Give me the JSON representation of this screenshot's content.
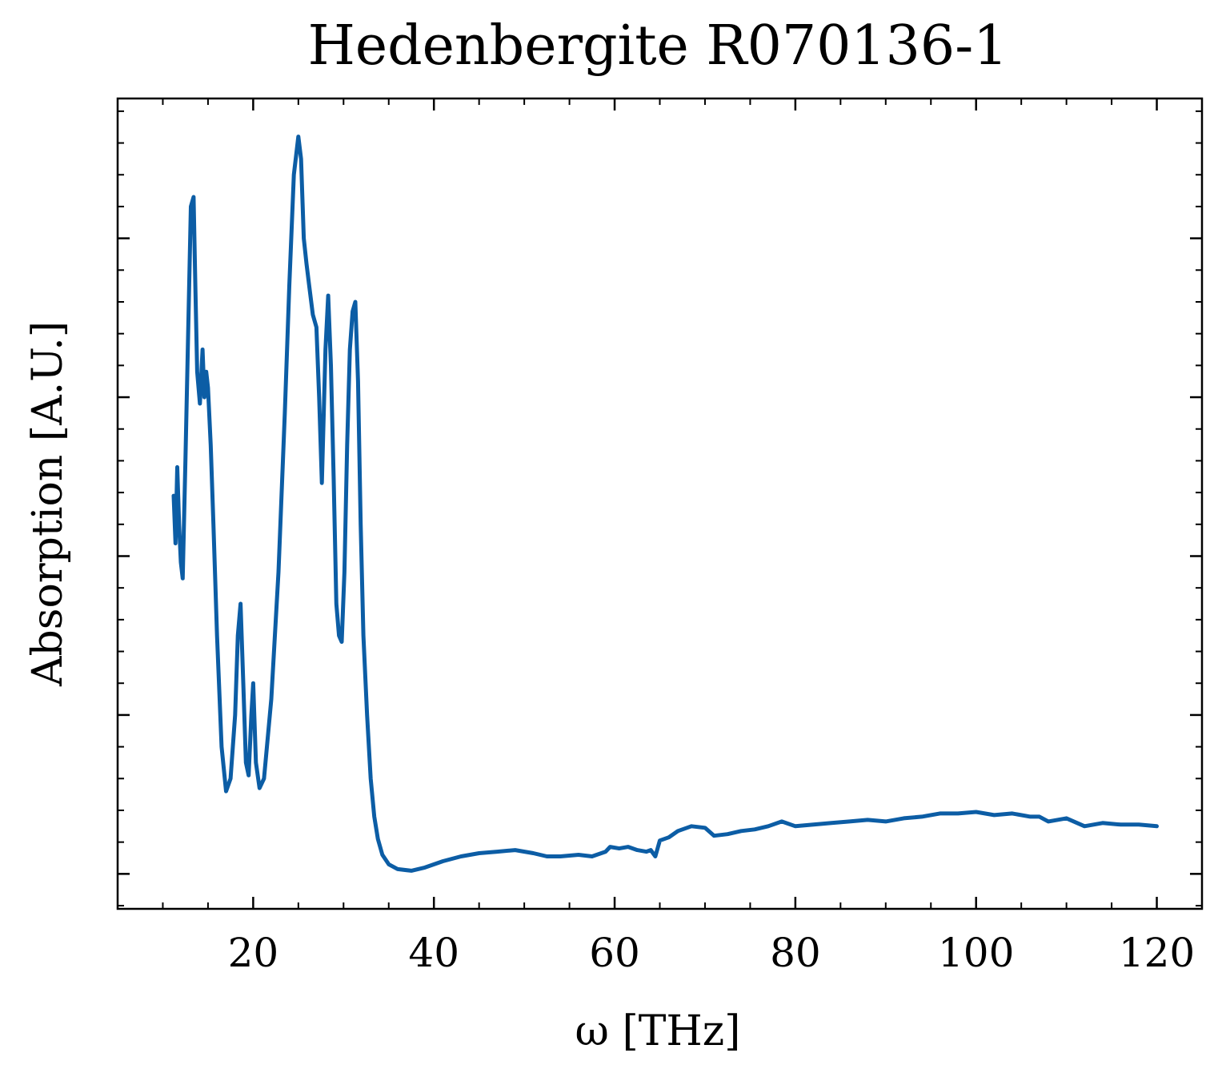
{
  "chart_data": {
    "type": "line",
    "title": "Hedenbergite R070136-1",
    "xlabel": "ω [THz]",
    "ylabel": "Absorption [A.U.]",
    "xlim": [
      5,
      125
    ],
    "ylim": [
      -0.11,
      2.44
    ],
    "x_ticks": [
      20,
      40,
      60,
      80,
      100,
      120
    ],
    "x_minor_step": 5,
    "y_ticks": [
      0,
      0.5,
      1.0,
      1.5,
      2.0
    ],
    "y_tick_labels_visible": false,
    "y_minor_step": 0.1,
    "grid": false,
    "series": [
      {
        "color": "#0c5da5",
        "x": [
          11.2,
          11.4,
          11.6,
          11.8,
          12.0,
          12.2,
          12.5,
          12.8,
          13.1,
          13.4,
          13.6,
          13.8,
          14.1,
          14.4,
          14.6,
          14.8,
          15.0,
          15.3,
          15.6,
          16.0,
          16.5,
          17.0,
          17.5,
          18.0,
          18.3,
          18.6,
          18.9,
          19.2,
          19.5,
          19.8,
          20.0,
          20.3,
          20.7,
          21.2,
          22.0,
          22.8,
          23.5,
          24.0,
          24.5,
          25.0,
          25.3,
          25.6,
          25.9,
          26.2,
          26.6,
          27.0,
          27.3,
          27.6,
          28.0,
          28.3,
          28.6,
          28.9,
          29.2,
          29.5,
          29.8,
          30.1,
          30.4,
          30.7,
          31.0,
          31.3,
          31.6,
          31.9,
          32.2,
          32.6,
          33.0,
          33.4,
          33.8,
          34.3,
          35.0,
          36.0,
          37.5,
          39.0,
          41.0,
          43.0,
          45.0,
          47.0,
          49.0,
          51.0,
          52.5,
          54.0,
          56.0,
          57.5,
          59.0,
          59.5,
          60.5,
          61.5,
          62.5,
          63.5,
          64.0,
          64.5,
          65.0,
          66.0,
          67.0,
          68.5,
          70.0,
          71.0,
          72.5,
          74.0,
          75.5,
          77.0,
          78.5,
          80.0,
          82.0,
          84.0,
          86.0,
          88.0,
          90.0,
          92.0,
          94.0,
          96.0,
          98.0,
          100.0,
          102.0,
          104.0,
          106.0,
          107.0,
          108.0,
          110.0,
          112.0,
          114.0,
          116.0,
          118.0,
          120.0
        ],
        "y": [
          1.19,
          1.04,
          1.28,
          1.1,
          0.98,
          0.93,
          1.3,
          1.7,
          2.1,
          2.13,
          1.85,
          1.58,
          1.48,
          1.65,
          1.5,
          1.58,
          1.53,
          1.35,
          1.1,
          0.75,
          0.4,
          0.26,
          0.3,
          0.5,
          0.75,
          0.85,
          0.6,
          0.35,
          0.31,
          0.5,
          0.6,
          0.35,
          0.27,
          0.3,
          0.55,
          0.95,
          1.45,
          1.85,
          2.2,
          2.32,
          2.25,
          2.0,
          1.92,
          1.85,
          1.76,
          1.72,
          1.5,
          1.23,
          1.65,
          1.82,
          1.6,
          1.25,
          0.85,
          0.75,
          0.73,
          0.95,
          1.35,
          1.65,
          1.77,
          1.8,
          1.55,
          1.1,
          0.75,
          0.5,
          0.3,
          0.18,
          0.11,
          0.06,
          0.03,
          0.015,
          0.01,
          0.02,
          0.04,
          0.055,
          0.065,
          0.07,
          0.075,
          0.065,
          0.055,
          0.055,
          0.06,
          0.055,
          0.07,
          0.085,
          0.08,
          0.085,
          0.075,
          0.07,
          0.075,
          0.055,
          0.105,
          0.115,
          0.135,
          0.15,
          0.145,
          0.12,
          0.125,
          0.135,
          0.14,
          0.15,
          0.165,
          0.15,
          0.155,
          0.16,
          0.165,
          0.17,
          0.165,
          0.175,
          0.18,
          0.19,
          0.19,
          0.195,
          0.185,
          0.19,
          0.18,
          0.18,
          0.165,
          0.175,
          0.15,
          0.16,
          0.155,
          0.155,
          0.15
        ]
      }
    ]
  }
}
